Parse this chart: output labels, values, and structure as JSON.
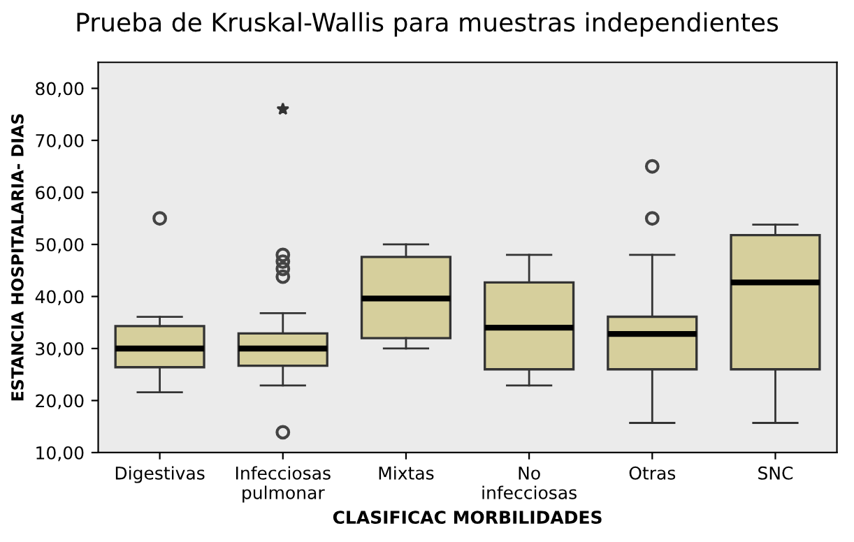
{
  "chart_data": {
    "type": "box",
    "title": "Prueba de Kruskal-Wallis para muestras independientes",
    "xlabel": "CLASIFICAC MORBILIDADES",
    "ylabel": "ESTANCIA HOSPITALARIA- DIAS",
    "categories": [
      "Digestivas",
      "Infecciosas\npulmonar",
      "Mixtas",
      "No\ninfecciosas",
      "Otras",
      "SNC"
    ],
    "color": "#d6cf9c",
    "boxes": [
      {
        "low": 21.6,
        "q1": 26.4,
        "median": 30,
        "q3": 34.3,
        "high": 36.1,
        "outliers": [
          55
        ]
      },
      {
        "low": 22.9,
        "q1": 26.7,
        "median": 30,
        "q3": 32.9,
        "high": 36.8,
        "outliers": [
          76,
          48,
          46.7,
          45.3,
          43.8,
          13.9
        ]
      },
      {
        "low": 30,
        "q1": 32,
        "median": 39.6,
        "q3": 47.6,
        "high": 50
      },
      {
        "low": 22.9,
        "q1": 26,
        "median": 34,
        "q3": 42.7,
        "high": 48
      },
      {
        "low": 15.7,
        "q1": 26,
        "median": 32.8,
        "q3": 36.1,
        "high": 48,
        "outliers": [
          65,
          55
        ]
      },
      {
        "low": 15.7,
        "q1": 26,
        "median": 42.7,
        "q3": 51.8,
        "high": 53.8
      }
    ],
    "ylim": [
      10,
      85
    ],
    "yticks": [
      {
        "value": 10,
        "label": "10,00"
      },
      {
        "value": 20,
        "label": "20,00"
      },
      {
        "value": 30,
        "label": "30,00"
      },
      {
        "value": 40,
        "label": "40,00"
      },
      {
        "value": 50,
        "label": "50,00"
      },
      {
        "value": 60,
        "label": "60,00"
      },
      {
        "value": 70,
        "label": "70,00"
      },
      {
        "value": 80,
        "label": "80,00"
      }
    ],
    "grid": false,
    "legend": false
  }
}
